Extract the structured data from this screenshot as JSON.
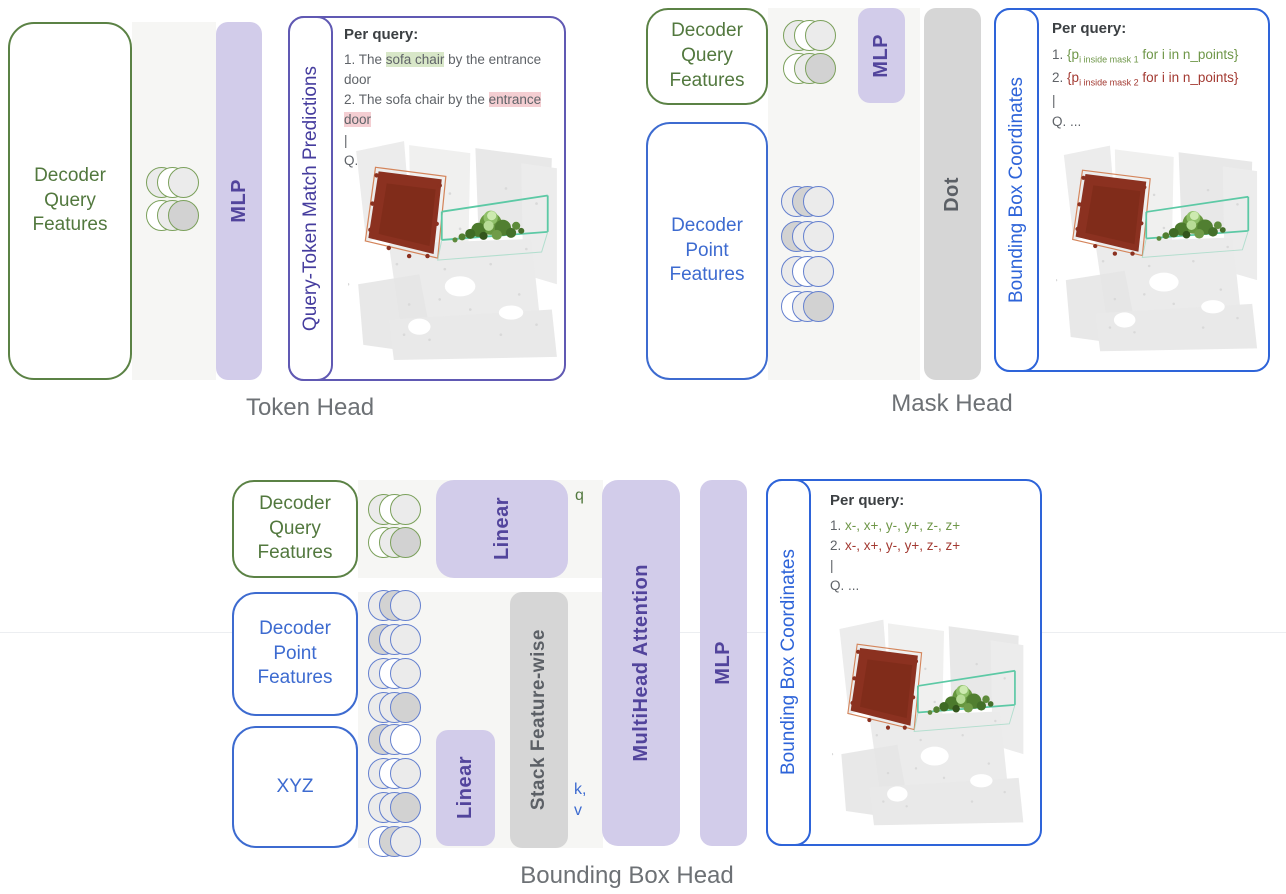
{
  "token_head": {
    "caption": "Token Head",
    "query_box": "Decoder Query Features",
    "mlp": "MLP",
    "output_label": "Query-Token Match Predictions",
    "per_query": {
      "title": "Per query:",
      "line1": {
        "pre": "1. The ",
        "hl": "sofa chair",
        "post": " by the entrance door"
      },
      "line2": {
        "pre": "2. The sofa chair by the ",
        "hl": "entrance door",
        "post": ""
      },
      "pipe": "|",
      "q": "Q. ..."
    },
    "query_circles": [
      [
        "lt",
        "wh",
        "lt"
      ],
      [
        "wh",
        "lt",
        "gy"
      ]
    ]
  },
  "mask_head": {
    "caption": "Mask Head",
    "query_box": "Decoder Query Features",
    "point_box": "Decoder Point Features",
    "mlp": "MLP",
    "dot": "Dot",
    "output_label": "Bounding Box Coordinates",
    "per_query": {
      "title": "Per query:",
      "line1": {
        "num": "1.",
        "open": "{p",
        "sub": "i inside mask 1",
        "rest": " for i in n_points}"
      },
      "line2": {
        "num": "2.",
        "open": "{p",
        "sub": "i inside mask 2",
        "rest": " for i in n_points}"
      },
      "pipe": "|",
      "q": "Q. ..."
    },
    "query_circles": [
      [
        "lt",
        "wh",
        "lt"
      ],
      [
        "wh",
        "lt",
        "gy"
      ]
    ],
    "point_circles": [
      [
        "lt",
        "gy",
        "lt"
      ],
      [
        "gy",
        "lt",
        "lt"
      ],
      [
        "lt",
        "wh",
        "lt"
      ],
      [
        "wh",
        "lt",
        "gy"
      ]
    ]
  },
  "bbox_head": {
    "caption": "Bounding Box Head",
    "query_box": "Decoder Query Features",
    "point_box": "Decoder Point Features",
    "xyz_box": "XYZ",
    "linear_top": "Linear",
    "linear_bottom": "Linear",
    "stack": "Stack Feature-wise",
    "mha": "MultiHead Attention",
    "mlp": "MLP",
    "q_label": "q",
    "k_label": "k,",
    "v_label": "v",
    "output_label": "Bounding Box Coordinates",
    "per_query": {
      "title": "Per query:",
      "line1": {
        "num": "1.",
        "coords": "x-, x+, y-, y+, z-, z+"
      },
      "line2": {
        "num": "2.",
        "coords": "x-, x+, y-, y+, z-, z+"
      },
      "pipe": "|",
      "q": "Q. ..."
    },
    "query_circles": [
      [
        "lt",
        "wh",
        "lt"
      ],
      [
        "wh",
        "lt",
        "gy"
      ]
    ],
    "point_circles": [
      [
        "lt",
        "gy",
        "lt"
      ],
      [
        "gy",
        "lt",
        "lt"
      ],
      [
        "lt",
        "wh",
        "lt"
      ],
      [
        "lt",
        "lt",
        "gy"
      ]
    ],
    "xyz_circles": [
      [
        "gy",
        "lt",
        "wh"
      ],
      [
        "lt",
        "wh",
        "lt"
      ],
      [
        "lt",
        "lt",
        "gy"
      ],
      [
        "wh",
        "gy",
        "lt"
      ]
    ]
  },
  "colors": {
    "green": "#5b8245",
    "blue": "#3d6bd0",
    "purple_fill": "#d2ccea",
    "purple_text": "#52449c",
    "gray_bar": "#d6d6d6",
    "token_border": "#6059b3",
    "blue_border": "#2e64d9",
    "highlight_green": "#d8e7c8",
    "highlight_pink": "#f4ced2",
    "text_green": "#6f9749",
    "text_red": "#a33a32"
  }
}
